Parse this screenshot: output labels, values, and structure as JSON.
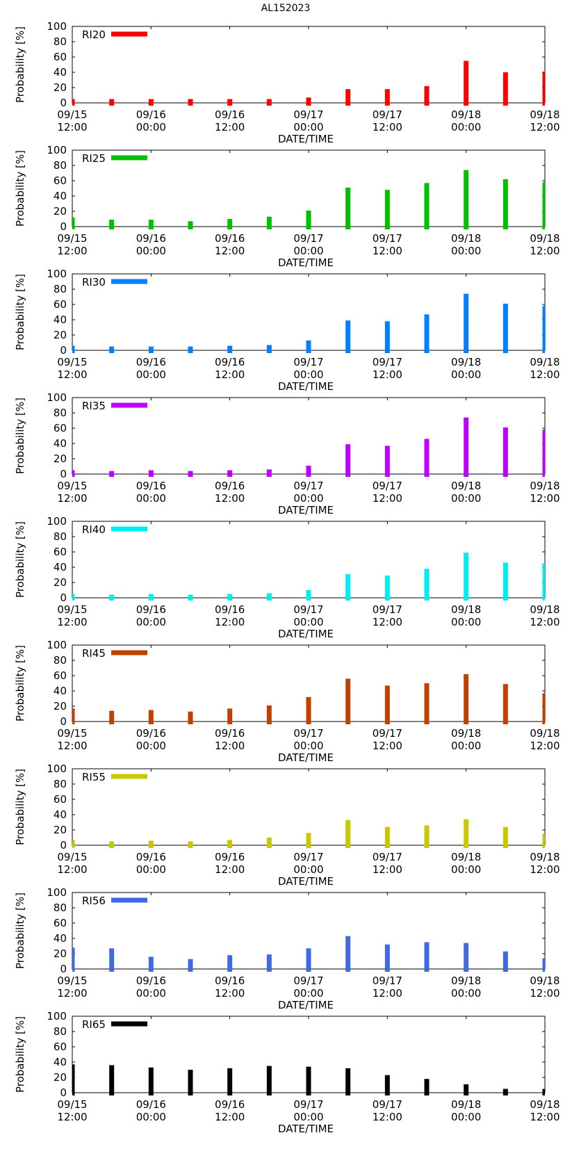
{
  "figure": {
    "title": "AL152023"
  },
  "axes_text": {
    "ylabel": "Probability [%]",
    "xlabel": "DATE/TIME",
    "yticks": [
      "0",
      "20",
      "40",
      "60",
      "80",
      "100"
    ],
    "xticks": [
      [
        "09/15",
        "12:00"
      ],
      [
        "09/16",
        "00:00"
      ],
      [
        "09/16",
        "12:00"
      ],
      [
        "09/17",
        "00:00"
      ],
      [
        "09/17",
        "12:00"
      ],
      [
        "09/18",
        "00:00"
      ],
      [
        "09/18",
        "12:00"
      ]
    ]
  },
  "chart_data": [
    {
      "type": "bar",
      "series_name": "RI20",
      "color": "#ff0000",
      "ylim": [
        0,
        100
      ],
      "ylabel": "Probability [%]",
      "xlabel": "DATE/TIME",
      "grid": false,
      "legend": "top-left",
      "x": [
        "09/15 12:00",
        "09/15 18:00",
        "09/16 00:00",
        "09/16 06:00",
        "09/16 12:00",
        "09/16 18:00",
        "09/17 00:00",
        "09/17 06:00",
        "09/17 12:00",
        "09/17 18:00",
        "09/18 00:00",
        "09/18 06:00",
        "09/18 12:00"
      ],
      "values": [
        5,
        5,
        5,
        5,
        5,
        5,
        7,
        18,
        18,
        22,
        55,
        40,
        41
      ]
    },
    {
      "type": "bar",
      "series_name": "RI25",
      "color": "#00c000",
      "ylim": [
        0,
        100
      ],
      "ylabel": "Probability [%]",
      "xlabel": "DATE/TIME",
      "grid": false,
      "legend": "top-left",
      "x": [
        "09/15 12:00",
        "09/15 18:00",
        "09/16 00:00",
        "09/16 06:00",
        "09/16 12:00",
        "09/16 18:00",
        "09/17 00:00",
        "09/17 06:00",
        "09/17 12:00",
        "09/17 18:00",
        "09/18 00:00",
        "09/18 06:00",
        "09/18 12:00"
      ],
      "values": [
        12,
        9,
        9,
        7,
        10,
        13,
        21,
        51,
        48,
        57,
        74,
        62,
        58
      ]
    },
    {
      "type": "bar",
      "series_name": "RI30",
      "color": "#0080ff",
      "ylim": [
        0,
        100
      ],
      "ylabel": "Probability [%]",
      "xlabel": "DATE/TIME",
      "grid": false,
      "legend": "top-left",
      "x": [
        "09/15 12:00",
        "09/15 18:00",
        "09/16 00:00",
        "09/16 06:00",
        "09/16 12:00",
        "09/16 18:00",
        "09/17 00:00",
        "09/17 06:00",
        "09/17 12:00",
        "09/17 18:00",
        "09/18 00:00",
        "09/18 06:00",
        "09/18 12:00"
      ],
      "values": [
        6,
        5,
        5,
        5,
        6,
        7,
        13,
        39,
        38,
        47,
        74,
        61,
        58
      ]
    },
    {
      "type": "bar",
      "series_name": "RI35",
      "color": "#c000ff",
      "ylim": [
        0,
        100
      ],
      "ylabel": "Probability [%]",
      "xlabel": "DATE/TIME",
      "grid": false,
      "legend": "top-left",
      "x": [
        "09/15 12:00",
        "09/15 18:00",
        "09/16 00:00",
        "09/16 06:00",
        "09/16 12:00",
        "09/16 18:00",
        "09/17 00:00",
        "09/17 06:00",
        "09/17 12:00",
        "09/17 18:00",
        "09/18 00:00",
        "09/18 06:00",
        "09/18 12:00"
      ],
      "values": [
        5,
        4,
        5,
        4,
        5,
        6,
        11,
        39,
        37,
        46,
        74,
        61,
        58
      ]
    },
    {
      "type": "bar",
      "series_name": "RI40",
      "color": "#00eeee",
      "ylim": [
        0,
        100
      ],
      "ylabel": "Probability [%]",
      "xlabel": "DATE/TIME",
      "grid": false,
      "legend": "top-left",
      "x": [
        "09/15 12:00",
        "09/15 18:00",
        "09/16 00:00",
        "09/16 06:00",
        "09/16 12:00",
        "09/16 18:00",
        "09/17 00:00",
        "09/17 06:00",
        "09/17 12:00",
        "09/17 18:00",
        "09/18 00:00",
        "09/18 06:00",
        "09/18 12:00"
      ],
      "values": [
        5,
        4,
        5,
        4,
        5,
        6,
        10,
        31,
        29,
        38,
        59,
        46,
        45
      ]
    },
    {
      "type": "bar",
      "series_name": "RI45",
      "color": "#c04000",
      "ylim": [
        0,
        100
      ],
      "ylabel": "Probability [%]",
      "xlabel": "DATE/TIME",
      "grid": false,
      "legend": "top-left",
      "x": [
        "09/15 12:00",
        "09/15 18:00",
        "09/16 00:00",
        "09/16 06:00",
        "09/16 12:00",
        "09/16 18:00",
        "09/17 00:00",
        "09/17 06:00",
        "09/17 12:00",
        "09/17 18:00",
        "09/18 00:00",
        "09/18 06:00",
        "09/18 12:00"
      ],
      "values": [
        17,
        14,
        15,
        13,
        17,
        21,
        32,
        56,
        47,
        50,
        62,
        49,
        37
      ]
    },
    {
      "type": "bar",
      "series_name": "RI55",
      "color": "#c8c800",
      "ylim": [
        0,
        100
      ],
      "ylabel": "Probability [%]",
      "xlabel": "DATE/TIME",
      "grid": false,
      "legend": "top-left",
      "x": [
        "09/15 12:00",
        "09/15 18:00",
        "09/16 00:00",
        "09/16 06:00",
        "09/16 12:00",
        "09/16 18:00",
        "09/17 00:00",
        "09/17 06:00",
        "09/17 12:00",
        "09/17 18:00",
        "09/18 00:00",
        "09/18 06:00",
        "09/18 12:00"
      ],
      "values": [
        7,
        5,
        6,
        5,
        7,
        10,
        16,
        33,
        24,
        26,
        34,
        24,
        15
      ]
    },
    {
      "type": "bar",
      "series_name": "RI56",
      "color": "#4169e1",
      "ylim": [
        0,
        100
      ],
      "ylabel": "Probability [%]",
      "xlabel": "DATE/TIME",
      "grid": false,
      "legend": "top-left",
      "x": [
        "09/15 12:00",
        "09/15 18:00",
        "09/16 00:00",
        "09/16 06:00",
        "09/16 12:00",
        "09/16 18:00",
        "09/17 00:00",
        "09/17 06:00",
        "09/17 12:00",
        "09/17 18:00",
        "09/18 00:00",
        "09/18 06:00",
        "09/18 12:00"
      ],
      "values": [
        28,
        27,
        16,
        13,
        18,
        19,
        27,
        43,
        32,
        35,
        34,
        23,
        14
      ]
    },
    {
      "type": "bar",
      "series_name": "RI65",
      "color": "#000000",
      "ylim": [
        0,
        100
      ],
      "ylabel": "Probability [%]",
      "xlabel": "DATE/TIME",
      "grid": false,
      "legend": "top-left",
      "x": [
        "09/15 12:00",
        "09/15 18:00",
        "09/16 00:00",
        "09/16 06:00",
        "09/16 12:00",
        "09/16 18:00",
        "09/17 00:00",
        "09/17 06:00",
        "09/17 12:00",
        "09/17 18:00",
        "09/18 00:00",
        "09/18 06:00",
        "09/18 12:00"
      ],
      "values": [
        37,
        36,
        33,
        30,
        32,
        35,
        34,
        32,
        23,
        18,
        11,
        5,
        5
      ]
    }
  ]
}
